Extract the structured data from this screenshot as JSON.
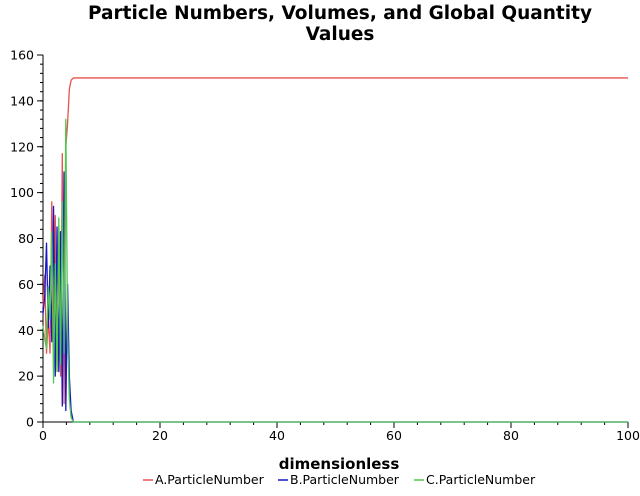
{
  "chart_data": {
    "type": "line",
    "title_lines": [
      "Particle Numbers, Volumes, and Global Quantity",
      "Values"
    ],
    "xlabel": "dimensionless",
    "ylabel": "",
    "xlim": [
      0,
      100
    ],
    "ylim": [
      0,
      160
    ],
    "x_ticks": [
      0,
      20,
      40,
      60,
      80,
      100
    ],
    "y_ticks": [
      0,
      20,
      40,
      60,
      80,
      100,
      120,
      140,
      160
    ],
    "grid": false,
    "legend_position": "bottom",
    "series": [
      {
        "name": "A.ParticleNumber",
        "color": "#e8524f",
        "x": [
          0,
          0.3,
          0.6,
          0.9,
          1.2,
          1.5,
          1.8,
          2.1,
          2.4,
          2.7,
          3.0,
          3.3,
          3.6,
          3.9,
          4.2,
          4.5,
          4.8,
          5.2,
          6,
          100
        ],
        "y": [
          50,
          64,
          30,
          45,
          30,
          96,
          28,
          90,
          22,
          80,
          20,
          117,
          8,
          120,
          130,
          145,
          149,
          150,
          150,
          150
        ]
      },
      {
        "name": "B.ParticleNumber",
        "color": "#1717c7",
        "x": [
          0,
          0.3,
          0.6,
          0.9,
          1.2,
          1.5,
          1.8,
          2.1,
          2.4,
          2.7,
          3.0,
          3.3,
          3.6,
          3.9,
          4.2,
          4.5,
          4.8,
          5.2,
          6,
          100
        ],
        "y": [
          47,
          55,
          78,
          41,
          68,
          35,
          94,
          20,
          85,
          22,
          83,
          7,
          109,
          5,
          60,
          20,
          5,
          0,
          0,
          0
        ]
      },
      {
        "name": "C.ParticleNumber",
        "color": "#4ec84e",
        "x": [
          0,
          0.3,
          0.6,
          0.9,
          1.2,
          1.5,
          1.8,
          2.1,
          2.4,
          2.7,
          3.0,
          3.3,
          3.6,
          3.9,
          4.2,
          4.5,
          4.8,
          5.2,
          6,
          100
        ],
        "y": [
          42,
          36,
          32,
          59,
          45,
          83,
          17,
          69,
          22,
          89,
          25,
          96,
          30,
          132,
          40,
          10,
          2,
          0,
          0,
          0
        ]
      }
    ]
  }
}
